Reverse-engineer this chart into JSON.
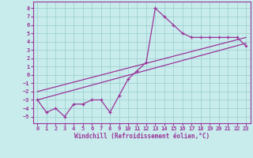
{
  "xlabel": "Windchill (Refroidissement éolien,°C)",
  "bg_color": "#c8ecec",
  "line_color": "#993399",
  "grid_color": "#99cccc",
  "xlim": [
    -0.5,
    23.5
  ],
  "ylim": [
    -5.8,
    8.8
  ],
  "xticks": [
    0,
    1,
    2,
    3,
    4,
    5,
    6,
    7,
    8,
    9,
    10,
    11,
    12,
    13,
    14,
    15,
    16,
    17,
    18,
    19,
    20,
    21,
    22,
    23
  ],
  "yticks": [
    -5,
    -4,
    -3,
    -2,
    -1,
    0,
    1,
    2,
    3,
    4,
    5,
    6,
    7,
    8
  ],
  "main_x": [
    0,
    1,
    2,
    3,
    4,
    5,
    6,
    7,
    8,
    9,
    10,
    11,
    12,
    13,
    14,
    15,
    16,
    17,
    18,
    19,
    20,
    21,
    22,
    23
  ],
  "main_y": [
    -3.0,
    -4.5,
    -4.0,
    -5.0,
    -3.5,
    -3.5,
    -3.0,
    -3.0,
    -4.5,
    -2.5,
    -0.5,
    0.5,
    1.5,
    8.0,
    7.0,
    6.0,
    5.0,
    4.5,
    4.5,
    4.5,
    4.5,
    4.5,
    4.5,
    3.5
  ],
  "trend1_x": [
    0,
    23
  ],
  "trend1_y": [
    -3.0,
    3.8
  ],
  "trend2_x": [
    0,
    23
  ],
  "trend2_y": [
    -2.0,
    4.5
  ]
}
